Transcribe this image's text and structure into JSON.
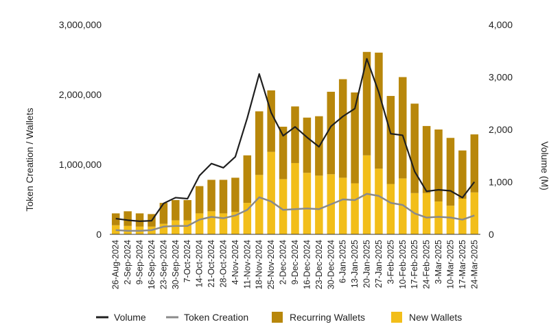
{
  "chart_data": {
    "type": "bar",
    "stacked": true,
    "title": "",
    "xlabel": "",
    "ylabel": "Token Creation / Wallets",
    "y2label": "Volume (M)",
    "ylim": [
      0,
      3000000
    ],
    "y2lim": [
      0,
      4000
    ],
    "yticks": [
      "0",
      "1,000,000",
      "2,000,000",
      "3,000,000"
    ],
    "y2ticks": [
      "0",
      "1,000",
      "2,000",
      "3,000",
      "4,000"
    ],
    "grid": false,
    "legend_position": "bottom",
    "colors": {
      "new_wallets": "#F2BE1A",
      "recurring_wallets": "#B8870B",
      "volume": "#1f1f1f",
      "token_creation": "#8a8a8a"
    },
    "categories": [
      "26-Aug-2024",
      "2-Sep-2024",
      "9-Sep-2024",
      "16-Sep-2024",
      "23-Sep-2024",
      "30-Sep-2024",
      "7-Oct-2024",
      "14-Oct-2024",
      "21-Oct-2024",
      "28-Oct-2024",
      "4-Nov-2024",
      "11-Nov-2024",
      "18-Nov-2024",
      "25-Nov-2024",
      "2-Dec-2024",
      "9-Dec-2024",
      "16-Dec-2024",
      "23-Dec-2024",
      "30-Dec-2024",
      "6-Jan-2025",
      "13-Jan-2025",
      "20-Jan-2025",
      "27-Jan-2025",
      "3-Feb-2025",
      "10-Feb-2025",
      "17-Feb-2025",
      "24-Feb-2025",
      "3-Mar-2025",
      "10-Mar-2025",
      "17-Mar-2025",
      "24-Mar-2025"
    ],
    "series": [
      {
        "name": "New Wallets",
        "kind": "bar",
        "axis": "left",
        "values": [
          130000,
          120000,
          110000,
          110000,
          150000,
          200000,
          200000,
          300000,
          330000,
          300000,
          320000,
          450000,
          850000,
          1180000,
          790000,
          1020000,
          880000,
          840000,
          860000,
          810000,
          730000,
          1130000,
          940000,
          720000,
          800000,
          590000,
          590000,
          470000,
          410000,
          510000,
          600000
        ]
      },
      {
        "name": "Recurring Wallets",
        "kind": "bar",
        "axis": "left",
        "values": [
          170000,
          210000,
          190000,
          180000,
          300000,
          290000,
          290000,
          390000,
          450000,
          480000,
          490000,
          680000,
          910000,
          880000,
          750000,
          810000,
          790000,
          850000,
          1180000,
          1410000,
          1300000,
          1480000,
          1660000,
          1260000,
          1450000,
          1280000,
          960000,
          1030000,
          970000,
          690000,
          830000
        ]
      },
      {
        "name": "Volume",
        "kind": "line",
        "axis": "right",
        "values": [
          300,
          270,
          250,
          260,
          590,
          700,
          680,
          1120,
          1350,
          1270,
          1480,
          2220,
          3060,
          2320,
          1880,
          2050,
          1850,
          1670,
          2060,
          2250,
          2400,
          3350,
          2710,
          1920,
          1890,
          1200,
          820,
          850,
          830,
          700,
          1000
        ]
      },
      {
        "name": "Token Creation",
        "kind": "line",
        "axis": "left",
        "values": [
          60000,
          50000,
          50000,
          60000,
          110000,
          120000,
          120000,
          210000,
          250000,
          230000,
          270000,
          350000,
          530000,
          470000,
          350000,
          360000,
          370000,
          360000,
          430000,
          500000,
          490000,
          580000,
          550000,
          450000,
          420000,
          300000,
          240000,
          250000,
          240000,
          210000,
          270000
        ]
      }
    ],
    "legend": [
      "Volume",
      "Token Creation",
      "Recurring Wallets",
      "New Wallets"
    ]
  }
}
